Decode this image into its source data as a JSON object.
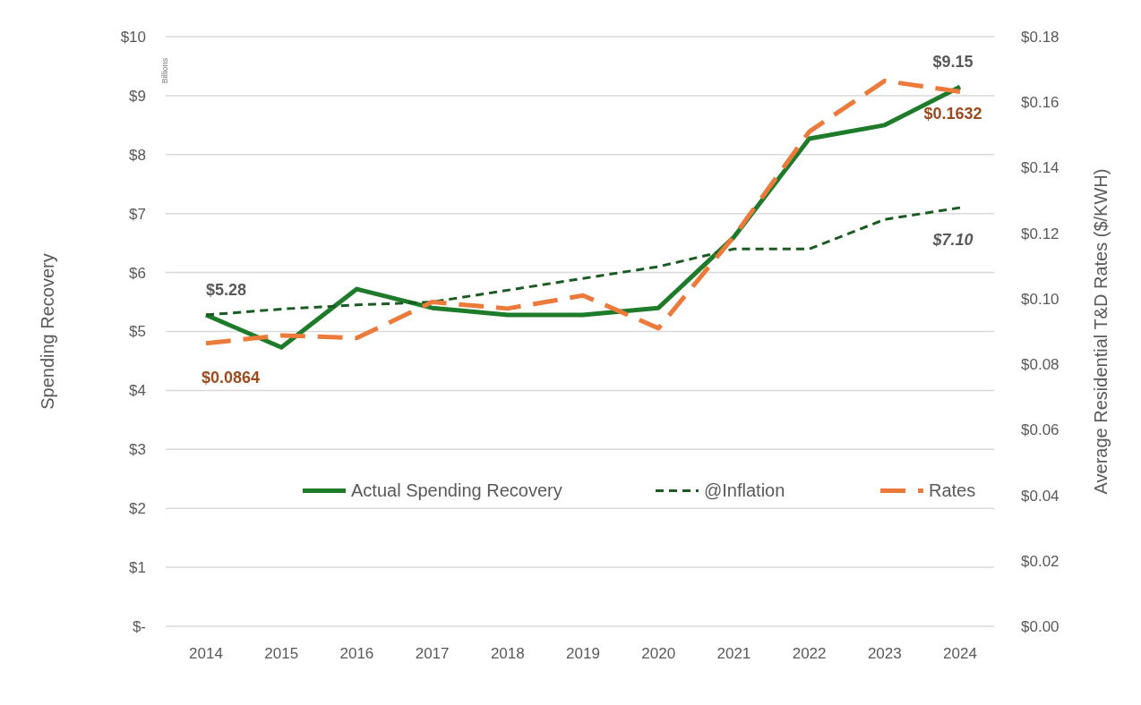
{
  "chart_data": {
    "type": "line",
    "ylabel": "Spending Recovery",
    "y2label": "Average Residential T&D Rates ($/KWH)",
    "annotations": [
      "Billions"
    ],
    "categories": [
      "2014",
      "2015",
      "2016",
      "2017",
      "2018",
      "2019",
      "2020",
      "2021",
      "2022",
      "2023",
      "2024"
    ],
    "series": [
      {
        "name": "Actual Spending Recovery",
        "color": "#1e7b2a",
        "line_style": "solid",
        "values": [
          5.28,
          4.73,
          5.72,
          5.4,
          5.28,
          5.28,
          5.4,
          6.6,
          8.27,
          8.5,
          9.15
        ],
        "value_labels": [
          "$5.28",
          null,
          null,
          null,
          null,
          null,
          null,
          null,
          null,
          null,
          "$9.15"
        ]
      },
      {
        "name": "@Inflation",
        "color": "#1b5a22",
        "line_style": "dashed",
        "values": [
          5.28,
          5.38,
          5.45,
          5.5,
          5.7,
          5.9,
          6.1,
          6.4,
          6.4,
          6.9,
          7.1
        ],
        "value_labels": [
          null,
          null,
          null,
          null,
          null,
          null,
          null,
          null,
          null,
          null,
          "$7.10"
        ]
      },
      {
        "name": "Rates",
        "color": "#ec7a3a",
        "line_style": "dashed",
        "axis": "y2",
        "values": [
          0.0864,
          0.0888,
          0.088,
          0.099,
          0.097,
          0.101,
          0.091,
          0.119,
          0.151,
          0.1665,
          0.1632
        ],
        "value_labels": [
          "$0.0864",
          null,
          null,
          null,
          null,
          null,
          null,
          null,
          null,
          null,
          "$0.1632"
        ]
      }
    ],
    "ylim": [
      0,
      10
    ],
    "yticks": [
      {
        "value": 0,
        "label": "$-"
      },
      {
        "value": 1,
        "label": "$1"
      },
      {
        "value": 2,
        "label": "$2"
      },
      {
        "value": 3,
        "label": "$3"
      },
      {
        "value": 4,
        "label": "$4"
      },
      {
        "value": 5,
        "label": "$5"
      },
      {
        "value": 6,
        "label": "$6"
      },
      {
        "value": 7,
        "label": "$7"
      },
      {
        "value": 8,
        "label": "$8"
      },
      {
        "value": 9,
        "label": "$9"
      },
      {
        "value": 10,
        "label": "$10"
      }
    ],
    "y2lim": [
      0,
      0.18
    ],
    "y2ticks": [
      {
        "value": 0,
        "label": "$0.00"
      },
      {
        "value": 0.02,
        "label": "$0.02"
      },
      {
        "value": 0.04,
        "label": "$0.04"
      },
      {
        "value": 0.06,
        "label": "$0.06"
      },
      {
        "value": 0.08,
        "label": "$0.08"
      },
      {
        "value": 0.1,
        "label": "$0.10"
      },
      {
        "value": 0.12,
        "label": "$0.12"
      },
      {
        "value": 0.14,
        "label": "$0.14"
      },
      {
        "value": 0.16,
        "label": "$0.16"
      },
      {
        "value": 0.18,
        "label": "$0.18"
      }
    ],
    "grid": "y",
    "legend": "bottom",
    "marker": "none"
  }
}
